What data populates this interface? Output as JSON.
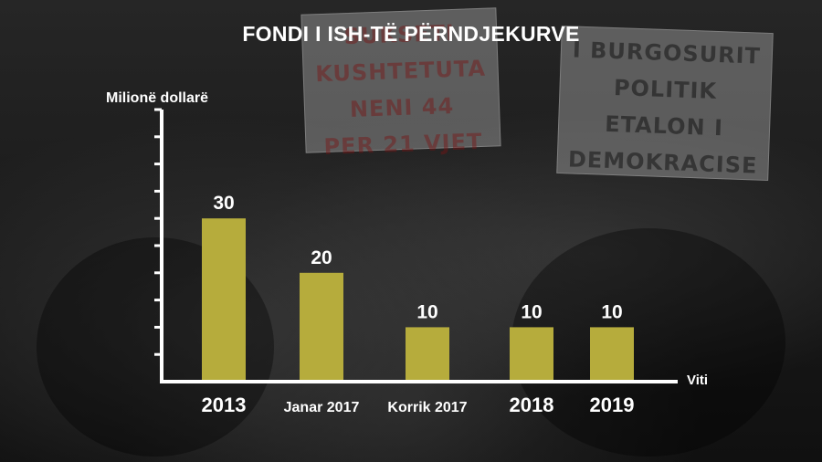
{
  "header": {
    "title": "FONDI I ISH-TË PËRNDJEKURVE"
  },
  "background": {
    "placard_left": [
      "SUKSETI",
      "KUSHTETUTA",
      "NENI 44",
      "PER 21 VJET"
    ],
    "placard_right": [
      "I BURGOSURIT",
      "POLITIK",
      "ETALON I",
      "DEMOKRACISE"
    ]
  },
  "colors": {
    "bar": "#b6ac3c",
    "axis": "#ffffff",
    "text": "#ffffff"
  },
  "chart_data": {
    "type": "bar",
    "title": "FONDI I ISH-TË PËRNDJEKURVE",
    "ylabel": "Milionë dollarë",
    "xlabel": "Viti",
    "categories": [
      "2013",
      "Janar 2017",
      "Korrik 2017",
      "2018",
      "2019"
    ],
    "values": [
      30,
      20,
      10,
      10,
      10
    ],
    "data_labels": [
      "30",
      "20",
      "10",
      "10",
      "10"
    ],
    "ylim": [
      0,
      50
    ],
    "y_tick_step": 5,
    "grid": false,
    "legend": "none"
  }
}
